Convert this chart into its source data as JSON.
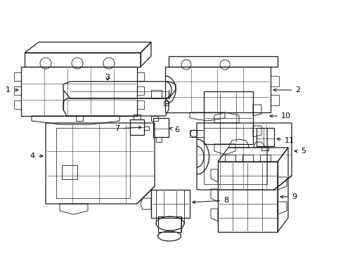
{
  "background_color": "#ffffff",
  "line_color": "#1a1a1a",
  "text_color": "#000000",
  "fig_width": 4.89,
  "fig_height": 3.6,
  "dpi": 100,
  "lw": 0.9
}
